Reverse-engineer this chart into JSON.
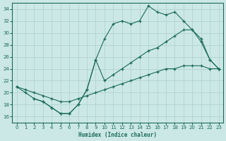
{
  "background_color": "#cce8e6",
  "grid_color": "#aacfcd",
  "line_color": "#1a6b5a",
  "xlabel": "Humidex (Indice chaleur)",
  "xlim": [
    -0.5,
    23.5
  ],
  "ylim": [
    15,
    35
  ],
  "yticks": [
    16,
    18,
    20,
    22,
    24,
    26,
    28,
    30,
    32,
    34
  ],
  "xticks": [
    0,
    1,
    2,
    3,
    4,
    5,
    6,
    7,
    8,
    9,
    10,
    11,
    12,
    13,
    14,
    15,
    16,
    17,
    18,
    19,
    20,
    21,
    22,
    23
  ],
  "curve1_x": [
    0,
    1,
    2,
    3,
    4,
    5,
    6,
    7,
    8,
    9,
    10,
    11,
    12,
    13,
    14,
    15,
    16,
    17,
    18,
    19,
    20,
    21,
    22,
    23
  ],
  "curve1_y": [
    21.0,
    20.0,
    19.0,
    18.5,
    17.5,
    16.5,
    16.5,
    18.0,
    20.5,
    25.5,
    29.0,
    31.5,
    32.0,
    31.5,
    32.0,
    34.5,
    33.5,
    33.0,
    33.5,
    32.0,
    30.5,
    29.0,
    25.5,
    24.0
  ],
  "curve2_x": [
    0,
    1,
    2,
    3,
    4,
    5,
    6,
    7,
    8,
    9,
    10,
    11,
    12,
    13,
    14,
    15,
    16,
    17,
    18,
    19,
    20,
    21,
    22,
    23
  ],
  "curve2_y": [
    21.0,
    20.5,
    20.0,
    19.5,
    19.0,
    18.5,
    18.5,
    19.0,
    19.5,
    20.0,
    20.5,
    21.0,
    21.5,
    22.0,
    22.5,
    23.0,
    23.5,
    24.0,
    24.0,
    24.5,
    24.5,
    24.5,
    24.0,
    24.0
  ],
  "curve3_x": [
    2,
    3,
    4,
    5,
    6,
    7,
    8,
    9,
    10,
    11,
    12,
    13,
    14,
    15,
    16,
    17,
    18,
    19,
    20,
    21,
    22,
    23
  ],
  "curve3_y": [
    19.0,
    18.5,
    17.5,
    16.5,
    16.5,
    18.0,
    20.5,
    25.5,
    22.0,
    23.0,
    24.0,
    25.0,
    26.0,
    27.0,
    27.5,
    28.5,
    29.5,
    30.5,
    30.5,
    28.5,
    25.5,
    24.0
  ]
}
